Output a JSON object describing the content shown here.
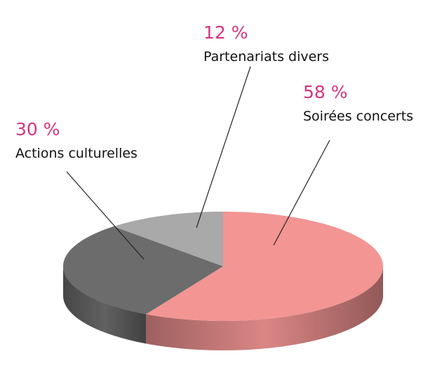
{
  "chart_data": {
    "type": "pie",
    "categories": [
      "Soirées concerts",
      "Actions culturelles",
      "Partenariats divers"
    ],
    "values": [
      58,
      30,
      12
    ],
    "value_labels": [
      "58 %",
      "30 %",
      "12 %"
    ],
    "colors": [
      "#f29593",
      "#6c6c6c",
      "#a9a9a9"
    ]
  }
}
